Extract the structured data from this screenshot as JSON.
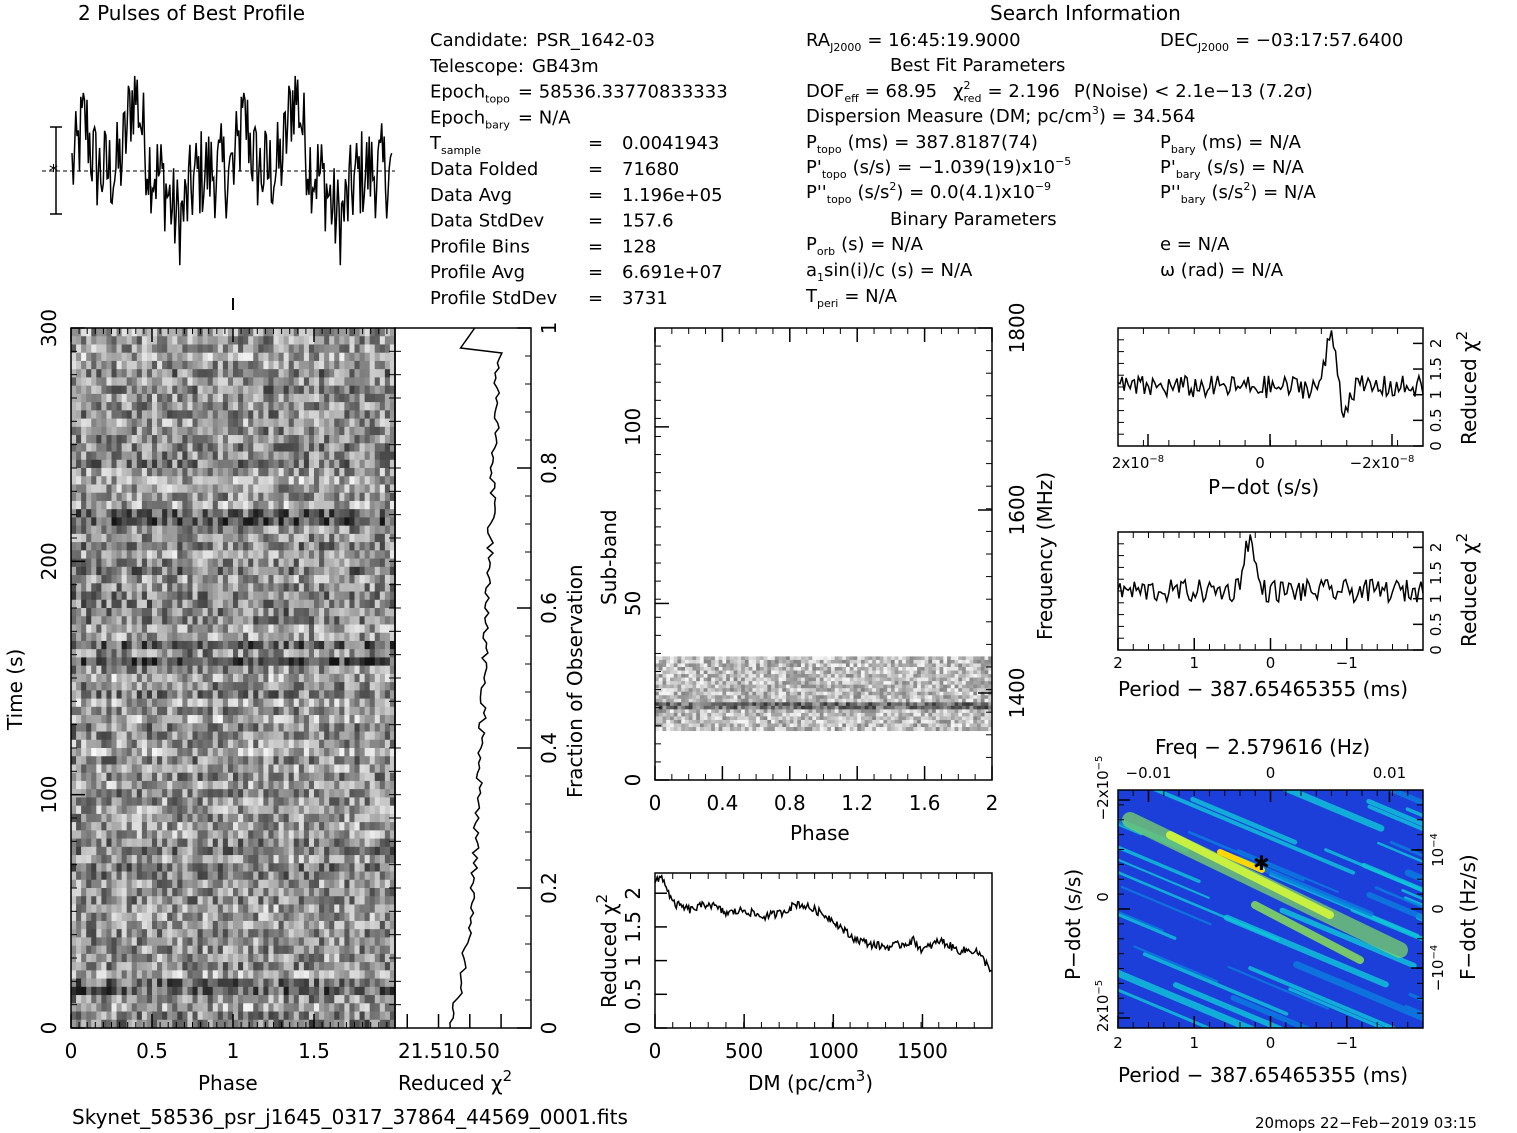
{
  "titles": {
    "profile": "2 Pulses of Best Profile",
    "search": "Search Information",
    "best_fit": "Best Fit Parameters",
    "binary": "Binary Parameters"
  },
  "info_left": [
    {
      "label": "Candidate:",
      "value": "PSR_1642-03"
    },
    {
      "label": "Telescope:",
      "value": "GB43m"
    },
    {
      "label": "Epoch",
      "sub": "topo",
      "value": "= 58536.33770833333"
    },
    {
      "label": "Epoch",
      "sub": "bary",
      "value": "= N/A"
    },
    {
      "label": "T",
      "sub": "sample",
      "value": "0.0041943"
    },
    {
      "label": "Data Folded",
      "value": "71680"
    },
    {
      "label": "Data Avg",
      "value": "1.196e+05"
    },
    {
      "label": "Data StdDev",
      "value": "157.6"
    },
    {
      "label": "Profile Bins",
      "value": "128"
    },
    {
      "label": "Profile Avg",
      "value": "6.691e+07"
    },
    {
      "label": "Profile StdDev",
      "value": "3731"
    }
  ],
  "eq": "=",
  "info_mid": {
    "ra": {
      "label": "RA",
      "sub": "J2000",
      "value": "= 16:45:19.9000"
    },
    "dec": {
      "label": "DEC",
      "sub": "J2000",
      "value": "= −03:17:57.6400"
    },
    "dof": "DOF",
    "dof_sub": "eff",
    "dof_value": "= 68.95",
    "chi": "χ",
    "chi_sup": "2",
    "chi_sub": "red",
    "chi_value": "= 2.196",
    "noise": "P(Noise) < 2.1e−13   (7.2σ)",
    "dm": "Dispersion Measure (DM; pc/cm",
    "dm_sup": "3",
    "dm_value": ") = 34.564",
    "ptopo": "P",
    "ptopo_sub": "topo",
    "ptopo_value": "(ms) =  387.8187(74)",
    "pdtopo": "P'",
    "pdtopo_value": "(s/s) = −1.039(19)x10",
    "pdtopo_sup": "−5",
    "pddtopo": "P''",
    "pddtopo_value": "(s/s",
    "pddtopo_value2": ") = 0.0(4.1)x10",
    "pddtopo_sup": "−9",
    "sq": "2",
    "porb": "P",
    "porb_sub": "orb",
    "porb_value": "(s) = N/A",
    "asini": "a",
    "asini_sub": "1",
    "asini_value": "sin(i)/c (s) = N/A",
    "tperi": "T",
    "tperi_sub": "peri",
    "tperi_value": "= N/A"
  },
  "info_right": {
    "pbary": "P",
    "pbary_sub": "bary",
    "pbary_value": "(ms) = N/A",
    "pdbary": "P'",
    "pdbary_value": "(s/s) = N/A",
    "pddbary": "P''",
    "pddbary_value": "(s/s",
    "pddbary_value2": ") = N/A",
    "sq": "2",
    "e": "e = N/A",
    "omega": "ω (rad) = N/A"
  },
  "footer": {
    "filename": "Skynet_58536_psr_j1645_0317_37864_44569_0001.fits",
    "stamp": "20mops 22−Feb−2019 03:15"
  },
  "colors": {
    "ink": "#000000",
    "map_low": "#1b2fc8",
    "map_mid": "#10c8d8",
    "map_high": "#ffd700"
  },
  "chart_data": [
    {
      "type": "line",
      "id": "profile",
      "title": "2 Pulses of Best Profile",
      "x_range": [
        0,
        2
      ],
      "n_bins": 256,
      "note_values": "normalized profile, 2 pulses of 128 bins"
    },
    {
      "type": "heatmap",
      "id": "time_phase",
      "xlabel": "Phase",
      "ylabel": "Time (s)",
      "xlim": [
        0,
        2
      ],
      "ylim": [
        0,
        300
      ],
      "xticks": [
        "0",
        "0.5",
        "1",
        "1.5"
      ],
      "yticks": [
        "0",
        "100",
        "200",
        "300"
      ],
      "colormap": "gray"
    },
    {
      "type": "line",
      "id": "time_chi2",
      "xlabel": "Reduced χ",
      "xlabel_sup": "2",
      "ylabel": "Fraction of Observation",
      "xticks_label": "21.510.50",
      "yticks": [
        "0",
        "0.2",
        "0.4",
        "0.6",
        "0.8",
        "1"
      ],
      "x_range": [
        2.2,
        0
      ],
      "y_range": [
        0,
        1
      ]
    },
    {
      "type": "heatmap",
      "id": "subband_phase",
      "xlabel": "Phase",
      "ylabel": "Sub-band",
      "ylabel2": "Frequency (MHz)",
      "xlim": [
        0,
        2
      ],
      "ylim": [
        0,
        128
      ],
      "xticks": [
        "0",
        "0.4",
        "0.8",
        "1.2",
        "1.6",
        "2"
      ],
      "yticks": [
        "0",
        "50",
        "100"
      ],
      "y2ticks": [
        "1400",
        "1600",
        "1800"
      ],
      "active_band": [
        14,
        35
      ]
    },
    {
      "type": "line",
      "id": "dm_chi2",
      "xlabel": "DM (pc/cm",
      "xlabel_sup": "3",
      "xlabel_end": ")",
      "ylabel": "Reduced χ",
      "ylabel_sup": "2",
      "xlim": [
        0,
        1890
      ],
      "ylim": [
        0,
        2.3
      ],
      "xticks": [
        "0",
        "500",
        "1000",
        "1500"
      ],
      "yticks": [
        "0",
        "0.5",
        "1",
        "1.5",
        "2"
      ],
      "points": [
        [
          0,
          2.15
        ],
        [
          40,
          2.25
        ],
        [
          100,
          1.85
        ],
        [
          200,
          1.75
        ],
        [
          300,
          1.85
        ],
        [
          400,
          1.7
        ],
        [
          500,
          1.75
        ],
        [
          600,
          1.65
        ],
        [
          700,
          1.7
        ],
        [
          800,
          1.85
        ],
        [
          900,
          1.75
        ],
        [
          1000,
          1.6
        ],
        [
          1100,
          1.35
        ],
        [
          1200,
          1.25
        ],
        [
          1300,
          1.2
        ],
        [
          1400,
          1.25
        ],
        [
          1450,
          1.3
        ],
        [
          1500,
          1.15
        ],
        [
          1600,
          1.3
        ],
        [
          1700,
          1.15
        ],
        [
          1800,
          1.15
        ],
        [
          1890,
          0.85
        ]
      ]
    },
    {
      "type": "line",
      "id": "pdot_chi2",
      "xlabel": "P−dot (s/s)",
      "ylabel": "Reduced χ",
      "ylabel_sup": "2",
      "xticks": [
        "2x10",
        "0",
        "−2x10"
      ],
      "xticks_sup": "−8",
      "yticks": [
        "0",
        "0.5",
        "1",
        "1.5",
        "2"
      ],
      "ylim": [
        0,
        2.3
      ],
      "peak_x_frac": 0.7,
      "peak_y": 2.25
    },
    {
      "type": "line",
      "id": "period_chi2",
      "xlabel": "Period − 387.65465355 (ms)",
      "ylabel": "Reduced χ",
      "ylabel_sup": "2",
      "xticks": [
        "2",
        "1",
        "0",
        "−1"
      ],
      "yticks": [
        "0",
        "0.5",
        "1",
        "1.5",
        "2"
      ],
      "ylim": [
        0,
        2.3
      ],
      "peak_x_frac": 0.43,
      "peak_y": 2.25
    },
    {
      "type": "heatmap",
      "id": "p_pdot",
      "title": "Freq − 2.579616 (Hz)",
      "xlabel": "Period − 387.65465355 (ms)",
      "ylabel": "P−dot (s/s)",
      "ylabel2": "F−dot (Hz/s)",
      "xticks": [
        "2",
        "1",
        "0",
        "−1"
      ],
      "top_ticks": [
        "−0.01",
        "0",
        "0.01"
      ],
      "yticks_left": [
        "2x10",
        "0",
        "−2x10"
      ],
      "yticks_left_sup": "−5",
      "yticks_right": [
        "−10",
        "0",
        "10"
      ],
      "yticks_right_sup": "−4",
      "colormap": "jet"
    }
  ]
}
